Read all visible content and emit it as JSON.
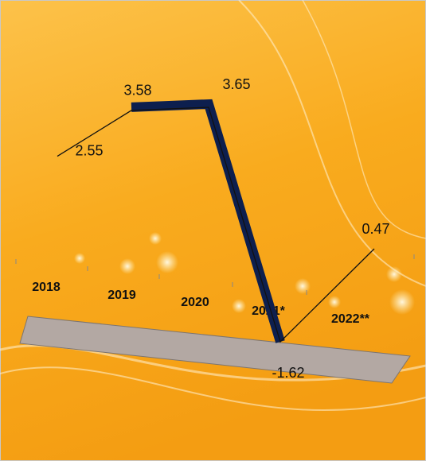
{
  "chart_data": {
    "type": "line",
    "categories": [
      "2018",
      "2019",
      "2020",
      "2021*",
      "2022**"
    ],
    "values": [
      2.55,
      3.58,
      3.65,
      -1.62,
      0.47
    ],
    "color": "#0d1f4e"
  }
}
